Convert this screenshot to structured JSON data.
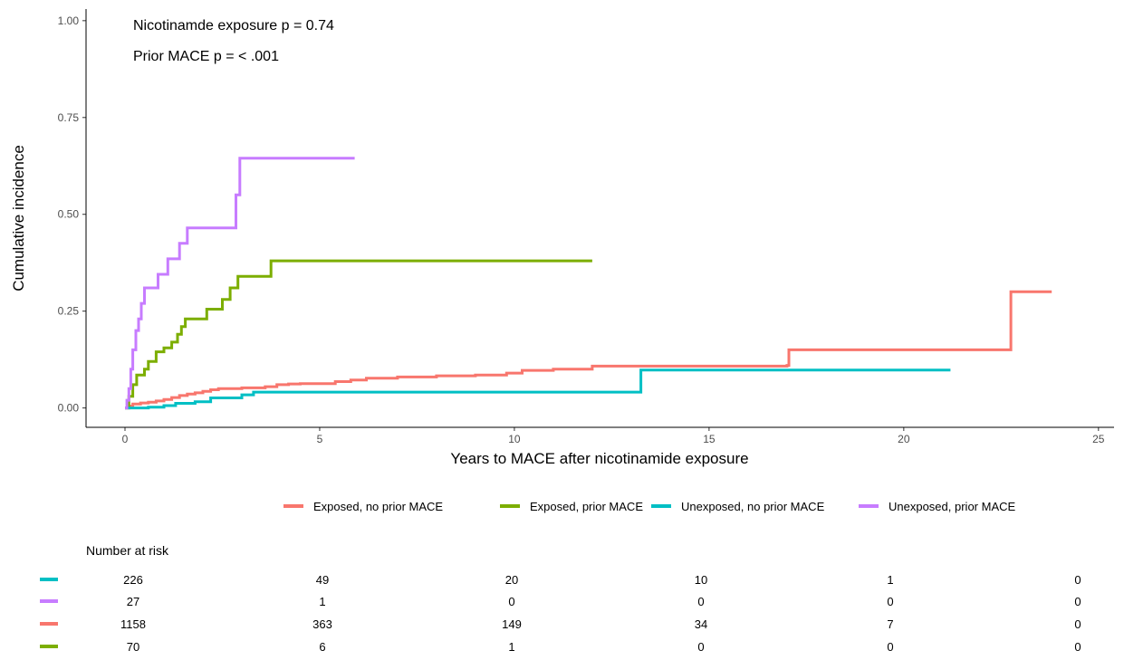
{
  "chart_data": {
    "type": "line",
    "step": true,
    "xlabel": "Years to MACE after nicotinamide exposure",
    "ylabel": "Cumulative incidence",
    "xlim": [
      -1,
      25.4
    ],
    "ylim": [
      -0.05,
      1.03
    ],
    "x_ticks": [
      0,
      5,
      10,
      15,
      20,
      25
    ],
    "y_ticks": [
      0,
      0.25,
      0.5,
      0.75,
      1.0
    ],
    "x_tick_labels": [
      "0",
      "5",
      "10",
      "15",
      "20",
      "25"
    ],
    "y_tick_labels": [
      "0.00",
      "0.25",
      "0.50",
      "0.75",
      "1.00"
    ],
    "grid": false,
    "legend_position": "bottom",
    "annotations": [
      "Nicotinamde exposure p = 0.74",
      "Prior MACE p = < .001"
    ],
    "series": [
      {
        "name": "Exposed, no prior MACE",
        "color": "#F8766D",
        "points": [
          [
            0,
            0
          ],
          [
            0.1,
            0.005
          ],
          [
            0.2,
            0.01
          ],
          [
            0.4,
            0.013
          ],
          [
            0.6,
            0.015
          ],
          [
            0.8,
            0.018
          ],
          [
            1.0,
            0.022
          ],
          [
            1.2,
            0.027
          ],
          [
            1.4,
            0.032
          ],
          [
            1.6,
            0.036
          ],
          [
            1.8,
            0.039
          ],
          [
            2.0,
            0.043
          ],
          [
            2.2,
            0.047
          ],
          [
            2.4,
            0.05
          ],
          [
            3.0,
            0.052
          ],
          [
            3.6,
            0.055
          ],
          [
            3.9,
            0.06
          ],
          [
            4.2,
            0.062
          ],
          [
            4.5,
            0.063
          ],
          [
            5.4,
            0.068
          ],
          [
            5.8,
            0.072
          ],
          [
            6.2,
            0.077
          ],
          [
            7.0,
            0.08
          ],
          [
            8.0,
            0.083
          ],
          [
            9.0,
            0.085
          ],
          [
            9.8,
            0.09
          ],
          [
            10.2,
            0.097
          ],
          [
            11.0,
            0.1
          ],
          [
            12.0,
            0.108
          ],
          [
            17.0,
            0.11
          ],
          [
            17.05,
            0.15
          ],
          [
            22.7,
            0.15
          ],
          [
            22.75,
            0.3
          ],
          [
            23.8,
            0.3
          ]
        ]
      },
      {
        "name": "Exposed, prior MACE",
        "color": "#7CAE00",
        "points": [
          [
            0,
            0
          ],
          [
            0.1,
            0.03
          ],
          [
            0.2,
            0.06
          ],
          [
            0.3,
            0.085
          ],
          [
            0.5,
            0.1
          ],
          [
            0.6,
            0.12
          ],
          [
            0.8,
            0.145
          ],
          [
            1.0,
            0.155
          ],
          [
            1.2,
            0.17
          ],
          [
            1.35,
            0.19
          ],
          [
            1.45,
            0.21
          ],
          [
            1.55,
            0.23
          ],
          [
            2.1,
            0.255
          ],
          [
            2.5,
            0.28
          ],
          [
            2.7,
            0.31
          ],
          [
            2.9,
            0.34
          ],
          [
            3.75,
            0.38
          ],
          [
            12.0,
            0.38
          ]
        ]
      },
      {
        "name": "Unexposed, no prior MACE",
        "color": "#00BFC4",
        "points": [
          [
            0,
            0
          ],
          [
            0.6,
            0.002
          ],
          [
            1.0,
            0.006
          ],
          [
            1.3,
            0.012
          ],
          [
            1.8,
            0.016
          ],
          [
            2.2,
            0.026
          ],
          [
            3.0,
            0.034
          ],
          [
            3.3,
            0.041
          ],
          [
            13.2,
            0.041
          ],
          [
            13.25,
            0.098
          ],
          [
            21.2,
            0.098
          ]
        ]
      },
      {
        "name": "Unexposed, prior MACE",
        "color": "#C77CFF",
        "points": [
          [
            0,
            0
          ],
          [
            0.05,
            0.02
          ],
          [
            0.1,
            0.05
          ],
          [
            0.15,
            0.1
          ],
          [
            0.2,
            0.15
          ],
          [
            0.28,
            0.2
          ],
          [
            0.35,
            0.23
          ],
          [
            0.42,
            0.27
          ],
          [
            0.5,
            0.31
          ],
          [
            0.85,
            0.345
          ],
          [
            1.1,
            0.385
          ],
          [
            1.4,
            0.425
          ],
          [
            1.6,
            0.465
          ],
          [
            2.85,
            0.55
          ],
          [
            2.95,
            0.645
          ],
          [
            5.9,
            0.645
          ]
        ]
      }
    ]
  },
  "risk_table": {
    "title": "Number at risk",
    "rows": [
      {
        "color": "#00BFC4",
        "values": [
          "226",
          "49",
          "20",
          "10",
          "1",
          "0"
        ]
      },
      {
        "color": "#C77CFF",
        "values": [
          "27",
          "1",
          "0",
          "0",
          "0",
          "0"
        ]
      },
      {
        "color": "#F8766D",
        "values": [
          "1158",
          "363",
          "149",
          "34",
          "7",
          "0"
        ]
      },
      {
        "color": "#7CAE00",
        "values": [
          "70",
          "6",
          "1",
          "0",
          "0",
          "0"
        ]
      }
    ]
  }
}
